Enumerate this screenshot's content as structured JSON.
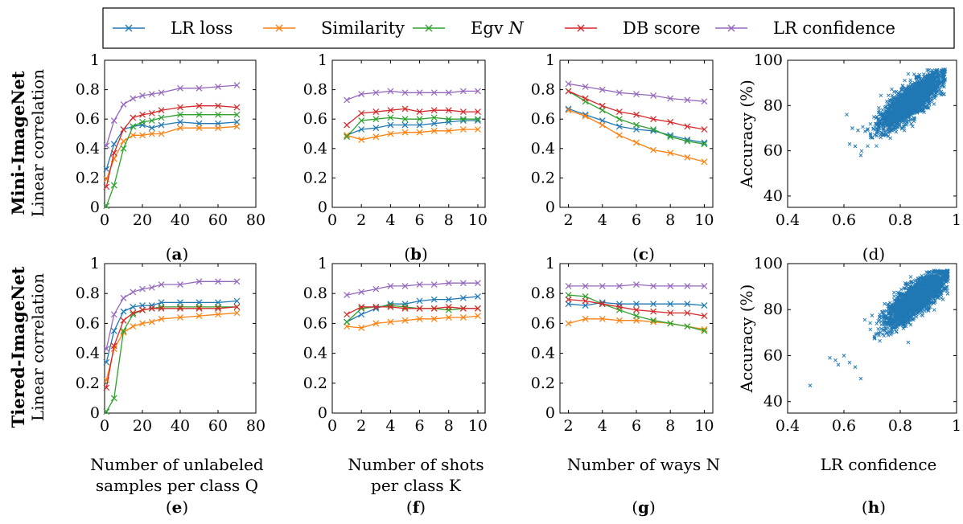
{
  "legend": {
    "items": [
      {
        "name": "LR loss",
        "color": "#1f77b4"
      },
      {
        "name": "Similarity",
        "color": "#ff7f0e"
      },
      {
        "name": "Egv N",
        "color": "#2ca02c"
      },
      {
        "name": "DB score",
        "color": "#d62728"
      },
      {
        "name": "LR confidence",
        "color": "#9467bd"
      }
    ]
  },
  "rows": [
    {
      "title": "Mini-ImageNet",
      "ylabel": "Linear correlation"
    },
    {
      "title": "Tiered-ImageNet",
      "ylabel": "Linear correlation"
    }
  ],
  "xlabels": {
    "e": [
      "Number of unlabeled",
      "samples per class Q"
    ],
    "f": [
      "Number of shots",
      "per class K"
    ],
    "g": [
      "Number of ways N"
    ],
    "h": [
      "LR confidence"
    ]
  },
  "captions": [
    "(a)",
    "(b)",
    "(c)",
    "(d)",
    "(e)",
    "(f)",
    "(g)",
    "(h)"
  ],
  "chart_data": [
    {
      "id": "a",
      "type": "line",
      "xlim": [
        0,
        80
      ],
      "ylim": [
        0,
        1
      ],
      "xticks": [
        0,
        20,
        40,
        60,
        80
      ],
      "yticks": [
        0,
        0.2,
        0.4,
        0.6,
        0.8,
        1
      ],
      "x": [
        1,
        5,
        10,
        15,
        20,
        25,
        30,
        40,
        50,
        60,
        70
      ],
      "series": [
        {
          "name": "LR loss",
          "values": [
            0.26,
            0.43,
            0.53,
            0.55,
            0.56,
            0.54,
            0.56,
            0.58,
            0.57,
            0.57,
            0.58
          ]
        },
        {
          "name": "Similarity",
          "values": [
            0.19,
            0.33,
            0.45,
            0.49,
            0.49,
            0.5,
            0.5,
            0.54,
            0.54,
            0.54,
            0.55
          ]
        },
        {
          "name": "Egv N",
          "values": [
            0.01,
            0.15,
            0.4,
            0.55,
            0.58,
            0.59,
            0.61,
            0.63,
            0.63,
            0.63,
            0.63
          ]
        },
        {
          "name": "DB score",
          "values": [
            0.14,
            0.37,
            0.53,
            0.61,
            0.63,
            0.64,
            0.66,
            0.68,
            0.69,
            0.69,
            0.68
          ]
        },
        {
          "name": "LR confidence",
          "values": [
            0.42,
            0.59,
            0.7,
            0.74,
            0.76,
            0.77,
            0.78,
            0.81,
            0.81,
            0.82,
            0.83
          ]
        }
      ]
    },
    {
      "id": "b",
      "type": "line",
      "xlim": [
        0,
        10.5
      ],
      "ylim": [
        0,
        1
      ],
      "xticks": [
        0,
        2,
        4,
        6,
        8,
        10
      ],
      "yticks": [
        0,
        0.2,
        0.4,
        0.6,
        0.8,
        1
      ],
      "x": [
        1,
        2,
        3,
        4,
        5,
        6,
        7,
        8,
        9,
        10
      ],
      "series": [
        {
          "name": "LR loss",
          "values": [
            0.49,
            0.53,
            0.54,
            0.56,
            0.56,
            0.56,
            0.57,
            0.58,
            0.59,
            0.59
          ]
        },
        {
          "name": "Similarity",
          "values": [
            0.49,
            0.46,
            0.48,
            0.5,
            0.51,
            0.51,
            0.52,
            0.52,
            0.53,
            0.53
          ]
        },
        {
          "name": "Egv N",
          "values": [
            0.48,
            0.59,
            0.6,
            0.61,
            0.6,
            0.6,
            0.61,
            0.6,
            0.6,
            0.6
          ]
        },
        {
          "name": "DB score",
          "values": [
            0.56,
            0.64,
            0.65,
            0.66,
            0.67,
            0.65,
            0.66,
            0.66,
            0.65,
            0.65
          ]
        },
        {
          "name": "LR confidence",
          "values": [
            0.73,
            0.77,
            0.78,
            0.79,
            0.78,
            0.78,
            0.78,
            0.78,
            0.79,
            0.79
          ]
        }
      ]
    },
    {
      "id": "c",
      "type": "line",
      "xlim": [
        1.5,
        10.5
      ],
      "ylim": [
        0,
        1
      ],
      "xticks": [
        2,
        4,
        6,
        8,
        10
      ],
      "yticks": [
        0,
        0.2,
        0.4,
        0.6,
        0.8,
        1
      ],
      "x": [
        2,
        3,
        4,
        5,
        6,
        7,
        8,
        9,
        10
      ],
      "series": [
        {
          "name": "LR loss",
          "values": [
            0.67,
            0.63,
            0.59,
            0.55,
            0.53,
            0.52,
            0.49,
            0.46,
            0.44
          ]
        },
        {
          "name": "Similarity",
          "values": [
            0.66,
            0.62,
            0.56,
            0.49,
            0.44,
            0.39,
            0.37,
            0.34,
            0.31
          ]
        },
        {
          "name": "Egv N",
          "values": [
            0.79,
            0.72,
            0.66,
            0.6,
            0.56,
            0.53,
            0.48,
            0.45,
            0.43
          ]
        },
        {
          "name": "DB score",
          "values": [
            0.79,
            0.74,
            0.69,
            0.65,
            0.63,
            0.6,
            0.58,
            0.55,
            0.53
          ]
        },
        {
          "name": "LR confidence",
          "values": [
            0.84,
            0.82,
            0.8,
            0.78,
            0.77,
            0.76,
            0.74,
            0.73,
            0.72
          ]
        }
      ]
    },
    {
      "id": "d",
      "type": "scatter",
      "xlim": [
        0.4,
        1.0
      ],
      "ylim": [
        35,
        100
      ],
      "xticks": [
        0.4,
        0.6,
        0.8,
        1
      ],
      "yticks": [
        40,
        60,
        80,
        100
      ],
      "xlabel": "",
      "ylabel": "Accuracy (%)",
      "cloud": {
        "center": [
          0.84,
          82
        ],
        "x_range": [
          0.66,
          0.96
        ],
        "y_range": [
          58,
          96
        ]
      },
      "outliers": [
        [
          0.61,
          76
        ],
        [
          0.62,
          63
        ],
        [
          0.64,
          62
        ],
        [
          0.66,
          58
        ],
        [
          0.65,
          69
        ],
        [
          0.63,
          70
        ]
      ]
    },
    {
      "id": "e",
      "type": "line",
      "xlim": [
        0,
        80
      ],
      "ylim": [
        0,
        1
      ],
      "xticks": [
        0,
        20,
        40,
        60,
        80
      ],
      "yticks": [
        0,
        0.2,
        0.4,
        0.6,
        0.8,
        1
      ],
      "x": [
        1,
        5,
        10,
        15,
        20,
        25,
        30,
        40,
        50,
        60,
        70
      ],
      "series": [
        {
          "name": "LR loss",
          "values": [
            0.34,
            0.55,
            0.68,
            0.71,
            0.72,
            0.72,
            0.74,
            0.74,
            0.74,
            0.74,
            0.75
          ]
        },
        {
          "name": "Similarity",
          "values": [
            0.22,
            0.43,
            0.54,
            0.58,
            0.6,
            0.61,
            0.63,
            0.64,
            0.65,
            0.66,
            0.67
          ]
        },
        {
          "name": "Egv N",
          "values": [
            0.01,
            0.1,
            0.55,
            0.66,
            0.69,
            0.7,
            0.71,
            0.71,
            0.71,
            0.71,
            0.71
          ]
        },
        {
          "name": "DB score",
          "values": [
            0.17,
            0.45,
            0.62,
            0.67,
            0.69,
            0.7,
            0.7,
            0.7,
            0.7,
            0.7,
            0.71
          ]
        },
        {
          "name": "LR confidence",
          "values": [
            0.43,
            0.66,
            0.77,
            0.81,
            0.83,
            0.84,
            0.86,
            0.86,
            0.88,
            0.88,
            0.88
          ]
        }
      ]
    },
    {
      "id": "f",
      "type": "line",
      "xlim": [
        0,
        10.5
      ],
      "ylim": [
        0,
        1
      ],
      "xticks": [
        0,
        2,
        4,
        6,
        8,
        10
      ],
      "yticks": [
        0,
        0.2,
        0.4,
        0.6,
        0.8,
        1
      ],
      "x": [
        1,
        2,
        3,
        4,
        5,
        6,
        7,
        8,
        9,
        10
      ],
      "series": [
        {
          "name": "LR loss",
          "values": [
            0.61,
            0.66,
            0.7,
            0.73,
            0.73,
            0.75,
            0.76,
            0.76,
            0.77,
            0.78
          ]
        },
        {
          "name": "Similarity",
          "values": [
            0.58,
            0.57,
            0.6,
            0.61,
            0.62,
            0.63,
            0.63,
            0.64,
            0.64,
            0.65
          ]
        },
        {
          "name": "Egv N",
          "values": [
            0.61,
            0.7,
            0.71,
            0.72,
            0.71,
            0.7,
            0.7,
            0.69,
            0.7,
            0.7
          ]
        },
        {
          "name": "DB score",
          "values": [
            0.66,
            0.71,
            0.71,
            0.71,
            0.7,
            0.7,
            0.7,
            0.71,
            0.7,
            0.7
          ]
        },
        {
          "name": "LR confidence",
          "values": [
            0.79,
            0.81,
            0.83,
            0.85,
            0.85,
            0.86,
            0.86,
            0.87,
            0.87,
            0.87
          ]
        }
      ]
    },
    {
      "id": "g",
      "type": "line",
      "xlim": [
        1.5,
        10.5
      ],
      "ylim": [
        0,
        1
      ],
      "xticks": [
        2,
        4,
        6,
        8,
        10
      ],
      "yticks": [
        0,
        0.2,
        0.4,
        0.6,
        0.8,
        1
      ],
      "x": [
        2,
        3,
        4,
        5,
        6,
        7,
        8,
        9,
        10
      ],
      "series": [
        {
          "name": "LR loss",
          "values": [
            0.73,
            0.72,
            0.74,
            0.73,
            0.73,
            0.73,
            0.73,
            0.73,
            0.72
          ]
        },
        {
          "name": "Similarity",
          "values": [
            0.6,
            0.63,
            0.63,
            0.62,
            0.62,
            0.61,
            0.6,
            0.58,
            0.56
          ]
        },
        {
          "name": "Egv N",
          "values": [
            0.79,
            0.78,
            0.73,
            0.69,
            0.65,
            0.62,
            0.6,
            0.58,
            0.55
          ]
        },
        {
          "name": "DB score",
          "values": [
            0.76,
            0.75,
            0.73,
            0.71,
            0.69,
            0.68,
            0.67,
            0.67,
            0.65
          ]
        },
        {
          "name": "LR confidence",
          "values": [
            0.85,
            0.85,
            0.85,
            0.85,
            0.86,
            0.85,
            0.85,
            0.85,
            0.85
          ]
        }
      ]
    },
    {
      "id": "h",
      "type": "scatter",
      "xlim": [
        0.4,
        1.0
      ],
      "ylim": [
        35,
        100
      ],
      "xticks": [
        0.4,
        0.6,
        0.8,
        1
      ],
      "yticks": [
        40,
        60,
        80,
        100
      ],
      "xlabel": "LR confidence",
      "ylabel": "Accuracy (%)",
      "cloud": {
        "center": [
          0.86,
          85
        ],
        "x_range": [
          0.62,
          0.97
        ],
        "y_range": [
          52,
          97
        ]
      },
      "outliers": [
        [
          0.48,
          47
        ],
        [
          0.55,
          59
        ],
        [
          0.57,
          58
        ],
        [
          0.6,
          60
        ],
        [
          0.62,
          57
        ],
        [
          0.66,
          50
        ],
        [
          0.64,
          55
        ],
        [
          0.58,
          56
        ]
      ]
    }
  ]
}
